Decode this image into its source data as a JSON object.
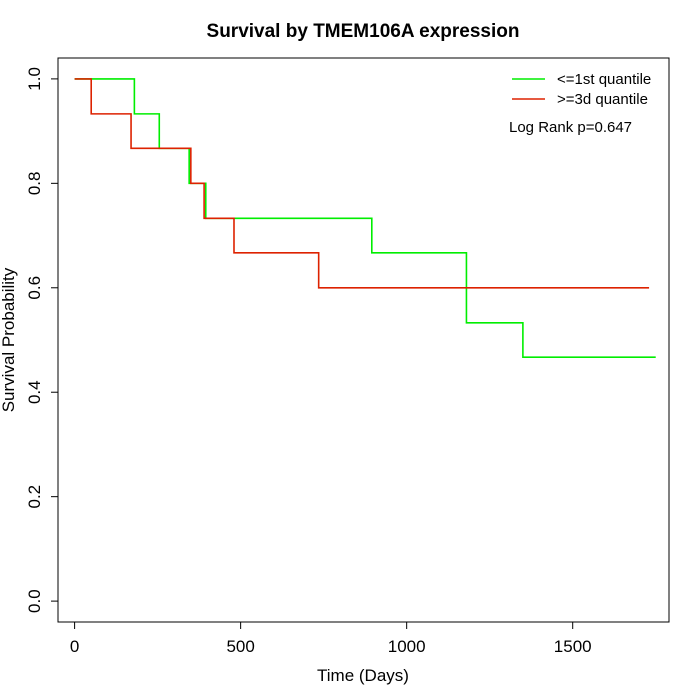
{
  "chart_data": {
    "type": "line",
    "title": "Survival by TMEM106A expression",
    "xlabel": "Time (Days)",
    "ylabel": "Survival Probability",
    "xlim": [
      -50,
      1790
    ],
    "ylim": [
      -0.04,
      1.04
    ],
    "xticks": [
      0,
      500,
      1000,
      1500
    ],
    "yticks": [
      0.0,
      0.2,
      0.4,
      0.6,
      0.8,
      1.0
    ],
    "xtick_labels": [
      "0",
      "500",
      "1000",
      "1500"
    ],
    "ytick_labels": [
      "0.0",
      "0.2",
      "0.4",
      "0.6",
      "0.8",
      "1.0"
    ],
    "grid": false,
    "legend_position": "top-right",
    "annotation": "Log Rank p=0.647",
    "series": [
      {
        "name": "<=1st quantile",
        "color": "#00ee00",
        "step": true,
        "x": [
          0,
          180,
          255,
          345,
          395,
          895,
          1180,
          1350,
          1750
        ],
        "y": [
          1.0,
          0.933,
          0.867,
          0.8,
          0.733,
          0.667,
          0.533,
          0.467,
          0.467
        ]
      },
      {
        "name": ">=3d quantile",
        "color": "#dd2200",
        "step": true,
        "x": [
          0,
          50,
          170,
          350,
          390,
          480,
          735,
          1730
        ],
        "y": [
          1.0,
          0.933,
          0.867,
          0.8,
          0.733,
          0.667,
          0.6,
          0.6
        ]
      }
    ]
  }
}
